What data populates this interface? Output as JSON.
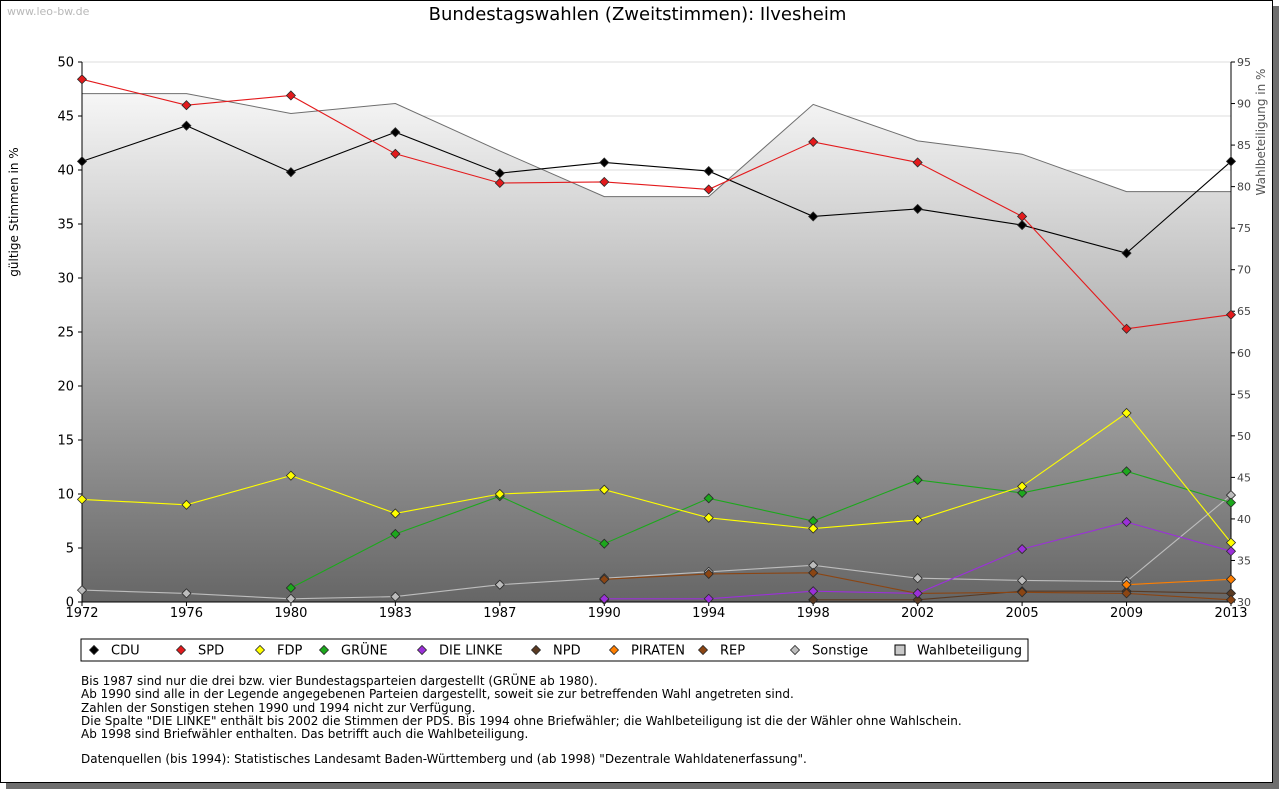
{
  "watermark": "www.leo-bw.de",
  "title": "Bundestagswahlen (Zweitstimmen): Ilvesheim",
  "notes": [
    "Bis 1987 sind nur die drei bzw. vier Bundestagsparteien dargestellt (GRÜNE ab 1980).",
    "Ab 1990 sind alle in der Legende angegebenen Parteien dargestellt, soweit sie zur betreffenden Wahl angetreten sind.",
    "Zahlen der Sonstigen stehen 1990 und 1994 nicht zur Verfügung.",
    "Die Spalte \"DIE LINKE\" enthält bis 2002 die Stimmen der PDS. Bis 1994 ohne Briefwähler; die Wahlbeteiligung ist die der Wähler ohne Wahlschein.",
    "Ab 1998 sind Briefwähler enthalten. Das betrifft auch die Wahlbeteiligung."
  ],
  "source": "Datenquellen (bis 1994): Statistisches Landesamt Baden-Württemberg und (ab 1998) \"Dezentrale Wahldatenerfassung\".",
  "chart_data": {
    "type": "line",
    "title": "Bundestagswahlen (Zweitstimmen): Ilvesheim",
    "xlabel": "",
    "ylabel": "gültige Stimmen in %",
    "ylabel_right": "Wahlbeteiligung in %",
    "ylim": [
      0,
      50
    ],
    "ylim_right": [
      30,
      95
    ],
    "x": [
      "1972",
      "1976",
      "1980",
      "1983",
      "1987",
      "1990",
      "1994",
      "1998",
      "2002",
      "2005",
      "2009",
      "2013"
    ],
    "yticks": [
      "0",
      "5",
      "10",
      "15",
      "20",
      "25",
      "30",
      "35",
      "40",
      "45",
      "50"
    ],
    "yticks_right": [
      "30",
      "35",
      "40",
      "45",
      "50",
      "55",
      "60",
      "65",
      "70",
      "75",
      "80",
      "85",
      "90",
      "95"
    ],
    "grid": true,
    "legend_position": "bottom",
    "turnout": {
      "name": "Wahlbeteiligung",
      "color": "#b0b0b0",
      "values": [
        91.2,
        91.2,
        88.8,
        90.0,
        84.3,
        78.8,
        78.8,
        89.9,
        85.5,
        83.9,
        79.4,
        79.4
      ]
    },
    "series": [
      {
        "name": "CDU",
        "color": "#000000",
        "values": [
          40.8,
          44.1,
          39.8,
          43.5,
          39.7,
          40.7,
          39.9,
          35.7,
          36.4,
          34.9,
          32.3,
          40.8
        ]
      },
      {
        "name": "SPD",
        "color": "#e31a1c",
        "values": [
          48.4,
          46.0,
          46.9,
          41.5,
          38.8,
          38.9,
          38.2,
          42.6,
          40.7,
          35.7,
          25.3,
          26.6
        ]
      },
      {
        "name": "FDP",
        "color": "#ffff00",
        "values": [
          9.5,
          9.0,
          11.7,
          8.2,
          10.0,
          10.4,
          7.8,
          6.8,
          7.6,
          10.7,
          17.5,
          5.5
        ]
      },
      {
        "name": "GRÜNE",
        "color": "#1ca81c",
        "values": [
          null,
          null,
          1.3,
          6.3,
          9.8,
          5.4,
          9.6,
          7.5,
          11.3,
          10.1,
          12.1,
          9.2
        ]
      },
      {
        "name": "DIE LINKE",
        "color": "#9b30d9",
        "values": [
          null,
          null,
          null,
          null,
          null,
          0.3,
          0.3,
          1.0,
          0.8,
          4.9,
          7.4,
          4.7
        ]
      },
      {
        "name": "NPD",
        "color": "#5a3a22",
        "values": [
          null,
          null,
          null,
          null,
          null,
          0.2,
          null,
          0.2,
          0.2,
          1.0,
          1.0,
          0.8
        ]
      },
      {
        "name": "PIRATEN",
        "color": "#ff7f00",
        "values": [
          null,
          null,
          null,
          null,
          null,
          null,
          null,
          null,
          null,
          null,
          1.6,
          2.1
        ]
      },
      {
        "name": "REP",
        "color": "#8b4513",
        "values": [
          null,
          null,
          null,
          null,
          null,
          2.1,
          2.6,
          2.7,
          0.8,
          0.9,
          0.8,
          0.2
        ]
      },
      {
        "name": "Sonstige",
        "color": "#bdbdbd",
        "values": [
          1.1,
          0.8,
          0.3,
          0.5,
          1.6,
          2.2,
          2.8,
          3.4,
          2.2,
          2.0,
          1.9,
          9.9
        ]
      }
    ]
  }
}
